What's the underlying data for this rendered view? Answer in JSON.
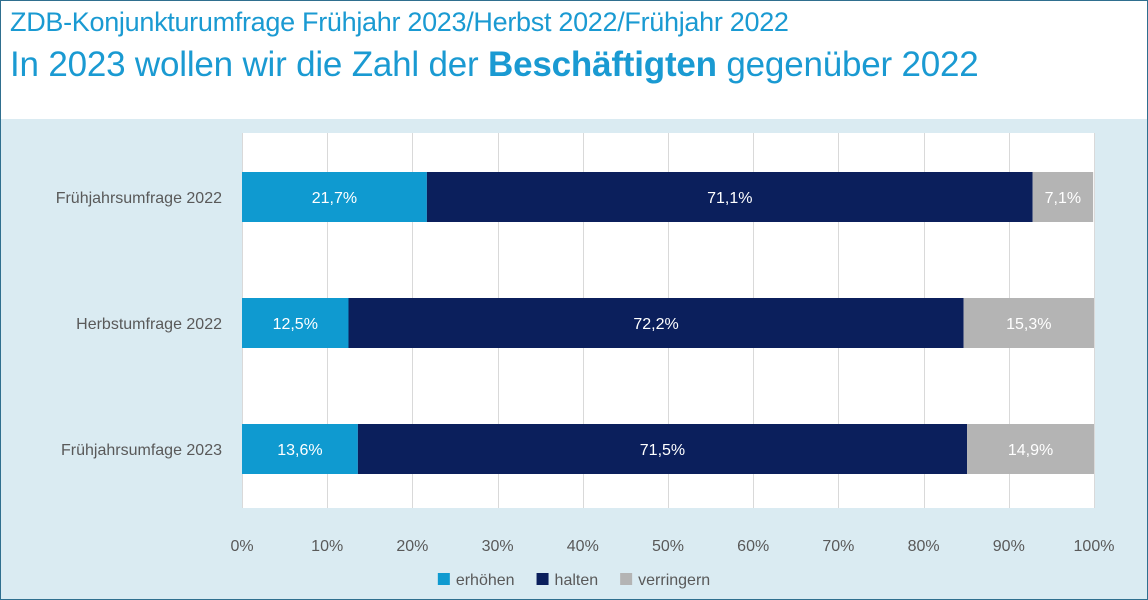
{
  "header": {
    "title": "ZDB-Konjunkturumfrage Frühjahr 2023/Herbst 2022/Frühjahr 2022",
    "subtitle_prefix": "In 2023 wollen wir die Zahl der ",
    "subtitle_bold": "Beschäftigten",
    "subtitle_suffix": " gegenüber 2022"
  },
  "colors": {
    "erhoehen": "#0f9ad0",
    "halten": "#0b1f5c",
    "verringern": "#b4b4b4",
    "gridline": "#d9d9d9",
    "axis_text": "#595959",
    "background": "#daebf2",
    "accent": "#1a9ad2"
  },
  "chart_data": {
    "type": "bar",
    "orientation": "horizontal",
    "stacked": true,
    "categories": [
      "Frühjahrsumfrage 2022",
      "Herbstumfrage 2022",
      "Frühjahrsumfage 2023"
    ],
    "series": [
      {
        "name": "erhöhen",
        "color": "#0f9ad0",
        "values": [
          21.7,
          12.5,
          13.6
        ],
        "labels": [
          "21,7%",
          "12,5%",
          "13,6%"
        ]
      },
      {
        "name": "halten",
        "color": "#0b1f5c",
        "values": [
          71.1,
          72.2,
          71.5
        ],
        "labels": [
          "71,1%",
          "72,2%",
          "71,5%"
        ]
      },
      {
        "name": "verringern",
        "color": "#b4b4b4",
        "values": [
          7.1,
          15.3,
          14.9
        ],
        "labels": [
          "7,1%",
          "15,3%",
          "14,9%"
        ]
      }
    ],
    "xlim": [
      0,
      100
    ],
    "xticks": [
      0,
      10,
      20,
      30,
      40,
      50,
      60,
      70,
      80,
      90,
      100
    ],
    "xtick_labels": [
      "0%",
      "10%",
      "20%",
      "30%",
      "40%",
      "50%",
      "60%",
      "70%",
      "80%",
      "90%",
      "100%"
    ],
    "grid": true,
    "legend_position": "bottom-center"
  }
}
